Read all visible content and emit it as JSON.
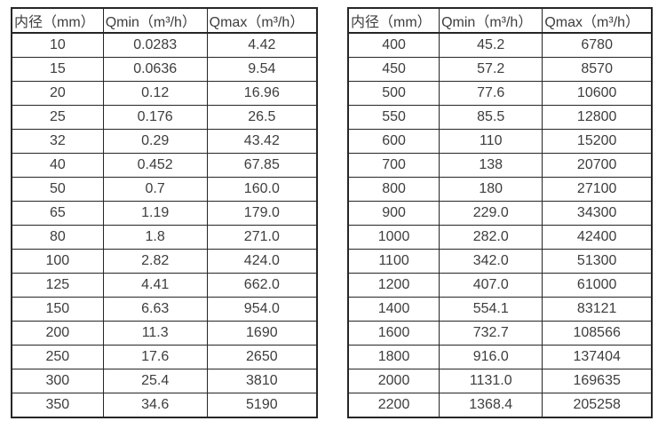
{
  "colors": {
    "border": "#262626",
    "text": "#3d3d3d",
    "background": "#ffffff"
  },
  "tables": [
    {
      "name": "flow-rate-table-small-diameters",
      "header": [
        "内径（mm）",
        "Qmin（m³/h）",
        "Qmax（m³/h）"
      ],
      "rows": [
        [
          "10",
          "0.0283",
          "4.42"
        ],
        [
          "15",
          "0.0636",
          "9.54"
        ],
        [
          "20",
          "0.12",
          "16.96"
        ],
        [
          "25",
          "0.176",
          "26.5"
        ],
        [
          "32",
          "0.29",
          "43.42"
        ],
        [
          "40",
          "0.452",
          "67.85"
        ],
        [
          "50",
          "0.7",
          "160.0"
        ],
        [
          "65",
          "1.19",
          "179.0"
        ],
        [
          "80",
          "1.8",
          "271.0"
        ],
        [
          "100",
          "2.82",
          "424.0"
        ],
        [
          "125",
          "4.41",
          "662.0"
        ],
        [
          "150",
          "6.63",
          "954.0"
        ],
        [
          "200",
          "11.3",
          "1690"
        ],
        [
          "250",
          "17.6",
          "2650"
        ],
        [
          "300",
          "25.4",
          "3810"
        ],
        [
          "350",
          "34.6",
          "5190"
        ]
      ]
    },
    {
      "name": "flow-rate-table-large-diameters",
      "header": [
        "内径（mm）",
        "Qmin（m³/h）",
        "Qmax（m³/h）"
      ],
      "rows": [
        [
          "400",
          "45.2",
          "6780"
        ],
        [
          "450",
          "57.2",
          "8570"
        ],
        [
          "500",
          "77.6",
          "10600"
        ],
        [
          "550",
          "85.5",
          "12800"
        ],
        [
          "600",
          "110",
          "15200"
        ],
        [
          "700",
          "138",
          "20700"
        ],
        [
          "800",
          "180",
          "27100"
        ],
        [
          "900",
          "229.0",
          "34300"
        ],
        [
          "1000",
          "282.0",
          "42400"
        ],
        [
          "1100",
          "342.0",
          "51300"
        ],
        [
          "1200",
          "407.0",
          "61000"
        ],
        [
          "1400",
          "554.1",
          "83121"
        ],
        [
          "1600",
          "732.7",
          "108566"
        ],
        [
          "1800",
          "916.0",
          "137404"
        ],
        [
          "2000",
          "1131.0",
          "169635"
        ],
        [
          "2200",
          "1368.4",
          "205258"
        ]
      ]
    }
  ]
}
